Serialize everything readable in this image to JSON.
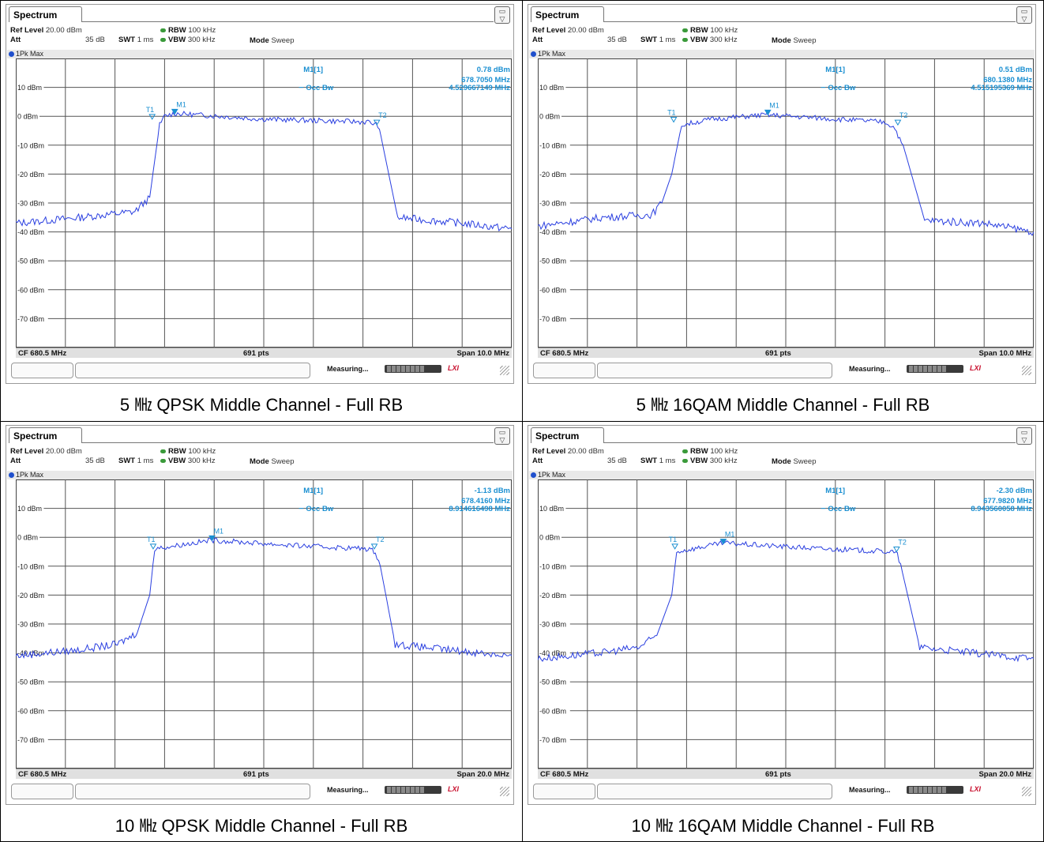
{
  "common": {
    "tab": "Spectrum",
    "corner_icon": "display-toggle-icon",
    "ref_level_label": "Ref Level",
    "ref_level_value": "20.00 dBm",
    "att_label": "Att",
    "att_value": "35 dB",
    "swt_label": "SWT",
    "swt_value": "1 ms",
    "rbw_label": "RBW",
    "rbw_value": "100 kHz",
    "vbw_label": "VBW",
    "vbw_value": "300 kHz",
    "mode_label": "Mode",
    "mode_value": "Sweep",
    "trace_label": "1Pk Max",
    "marker_label": "M1[1]",
    "occbw_label": "Occ Bw",
    "status_text": "Measuring...",
    "status_logo": "LXI",
    "colors": {
      "trace": "#2a3fe0",
      "marker": "#1a8fd1",
      "grid": "#555555"
    }
  },
  "panels": [
    {
      "caption": "5 ㎒ QPSK Middle Channel - Full RB",
      "marker_level": "0.78 dBm",
      "marker_freq": "678.7050 MHz",
      "occ_bw": "4.529667149 MHz",
      "footer_cf": "CF 680.5 MHz",
      "footer_pts": "691 pts",
      "footer_span": "Span 10.0 MHz",
      "chart_data": {
        "type": "line",
        "y_tick_labels": [
          "10 dBm",
          "0 dBm",
          "-10 dBm",
          "-20 dBm",
          "-30 dBm",
          "-40 dBm",
          "-50 dBm",
          "-60 dBm",
          "-70 dBm"
        ],
        "ylim": [
          -80,
          20
        ],
        "xlim": [
          675.5,
          685.5
        ],
        "x": [
          675.5,
          676.8,
          677.9,
          678.2,
          678.4,
          678.5,
          678.7,
          680.5,
          682.6,
          682.8,
          682.9,
          683.2,
          684.5,
          685.5
        ],
        "y": [
          -37,
          -35,
          -33,
          -28,
          -3,
          0,
          1,
          -1,
          -2,
          -3,
          -10,
          -35,
          -37,
          -39
        ],
        "markers": [
          {
            "label": "T1",
            "x": 678.25,
            "y": -1
          },
          {
            "label": "M1",
            "x": 678.705,
            "y": 0.78
          },
          {
            "label": "T2",
            "x": 682.78,
            "y": -3
          }
        ]
      }
    },
    {
      "caption": "5 ㎒ 16QAM Middle Channel - Full RB",
      "marker_level": "0.51 dBm",
      "marker_freq": "680.1380 MHz",
      "occ_bw": "4.515195369 MHz",
      "footer_cf": "CF 680.5 MHz",
      "footer_pts": "691 pts",
      "footer_span": "Span 10.0 MHz",
      "chart_data": {
        "type": "line",
        "y_tick_labels": [
          "10 dBm",
          "0 dBm",
          "-10 dBm",
          "-20 dBm",
          "-30 dBm",
          "-40 dBm",
          "-50 dBm",
          "-60 dBm",
          "-70 dBm"
        ],
        "ylim": [
          -80,
          20
        ],
        "xlim": [
          675.5,
          685.5
        ],
        "x": [
          675.5,
          676.8,
          677.8,
          678.0,
          678.2,
          678.4,
          679.0,
          680.1,
          682.5,
          682.7,
          682.9,
          683.3,
          684.5,
          685.5
        ],
        "y": [
          -38,
          -35,
          -34,
          -30,
          -20,
          -3,
          -1,
          0.5,
          -2,
          -4,
          -12,
          -36,
          -37,
          -40
        ],
        "markers": [
          {
            "label": "T1",
            "x": 678.24,
            "y": -2
          },
          {
            "label": "M1",
            "x": 680.138,
            "y": 0.51
          },
          {
            "label": "T2",
            "x": 682.76,
            "y": -3
          }
        ]
      }
    },
    {
      "caption": "10 ㎒ QPSK Middle Channel - Full RB",
      "marker_level": "-1.13 dBm",
      "marker_freq": "678.4160 MHz",
      "occ_bw": "8.914616498 MHz",
      "footer_cf": "CF 680.5 MHz",
      "footer_pts": "691 pts",
      "footer_span": "Span 20.0 MHz",
      "chart_data": {
        "type": "line",
        "y_tick_labels": [
          "10 dBm",
          "0 dBm",
          "-10 dBm",
          "-20 dBm",
          "-30 dBm",
          "-40 dBm",
          "-50 dBm",
          "-60 dBm",
          "-70 dBm"
        ],
        "ylim": [
          -80,
          20
        ],
        "xlim": [
          670.5,
          690.5
        ],
        "x": [
          670.5,
          673.0,
          674.6,
          675.4,
          675.9,
          676.1,
          678.4,
          682.0,
          684.7,
          685.0,
          685.2,
          685.8,
          688.0,
          690.5
        ],
        "y": [
          -41,
          -39,
          -37,
          -33,
          -20,
          -4,
          -1,
          -3,
          -4,
          -5,
          -10,
          -37,
          -39,
          -41
        ],
        "markers": [
          {
            "label": "T1",
            "x": 676.04,
            "y": -4
          },
          {
            "label": "M1",
            "x": 678.416,
            "y": -1.13
          },
          {
            "label": "T2",
            "x": 684.96,
            "y": -4
          }
        ]
      }
    },
    {
      "caption": "10 ㎒ 16QAM Middle Channel - Full RB",
      "marker_level": "-2.30 dBm",
      "marker_freq": "677.9820 MHz",
      "occ_bw": "8.943560058 MHz",
      "footer_cf": "CF 680.5 MHz",
      "footer_pts": "691 pts",
      "footer_span": "Span 20.0 MHz",
      "chart_data": {
        "type": "line",
        "y_tick_labels": [
          "10 dBm",
          "0 dBm",
          "-10 dBm",
          "-20 dBm",
          "-30 dBm",
          "-40 dBm",
          "-50 dBm",
          "-60 dBm",
          "-70 dBm"
        ],
        "ylim": [
          -80,
          20
        ],
        "xlim": [
          670.5,
          690.5
        ],
        "x": [
          670.5,
          673.0,
          674.6,
          675.3,
          675.9,
          676.1,
          678.0,
          682.0,
          684.8,
          685.0,
          685.2,
          685.9,
          688.0,
          690.5
        ],
        "y": [
          -42,
          -40,
          -38,
          -34,
          -20,
          -5,
          -2,
          -4,
          -5,
          -6,
          -12,
          -38,
          -40,
          -42
        ],
        "markers": [
          {
            "label": "T1",
            "x": 676.03,
            "y": -4
          },
          {
            "label": "M1",
            "x": 677.982,
            "y": -2.3
          },
          {
            "label": "T2",
            "x": 684.97,
            "y": -5
          }
        ]
      }
    }
  ]
}
